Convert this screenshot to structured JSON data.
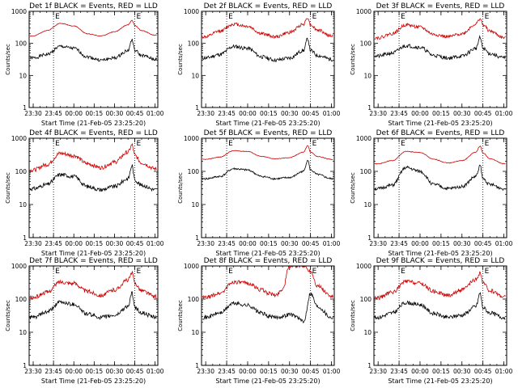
{
  "figure": {
    "background": "#ffffff",
    "colors": {
      "events": "#000000",
      "lld": "#cc0000",
      "axes": "#000000"
    }
  },
  "chart_data": [
    {
      "type": "line",
      "title": "Det 1f BLACK = Events, RED = LLD",
      "xlabel": "Start Time (21-Feb-05 23:25:20)",
      "ylabel": "Counts/sec",
      "x_ticks": [
        "23:30",
        "23:45",
        "00:00",
        "00:15",
        "00:30",
        "00:45",
        "01:00"
      ],
      "y_ticks": [
        "1",
        "10",
        "100",
        "1000"
      ],
      "y_scale": "log",
      "ylim": [
        1,
        1000
      ],
      "time_span": "23:27 to 01:02",
      "markers": [
        {
          "t": "23:45",
          "label": "E"
        },
        {
          "t": "00:45",
          "label": "E"
        }
      ],
      "series": [
        {
          "name": "BLACK = Events",
          "color": "#000000",
          "t": [
            "23:30",
            "23:40",
            "23:50",
            "00:00",
            "00:10",
            "00:20",
            "00:30",
            "00:40",
            "00:43",
            "00:45",
            "00:50",
            "01:00"
          ],
          "values": [
            35,
            45,
            80,
            70,
            38,
            30,
            35,
            60,
            130,
            60,
            42,
            32
          ],
          "noise": 0.05
        },
        {
          "name": "RED = LLD",
          "color": "#cc0000",
          "t": [
            "23:30",
            "23:40",
            "23:50",
            "00:00",
            "00:10",
            "00:20",
            "00:30",
            "00:40",
            "00:43",
            "00:45",
            "00:50",
            "01:00"
          ],
          "values": [
            170,
            250,
            420,
            350,
            200,
            170,
            230,
            380,
            520,
            360,
            250,
            180
          ],
          "noise": 0.01
        }
      ]
    },
    {
      "type": "line",
      "title": "Det 2f BLACK = Events, RED = LLD",
      "xlabel": "Start Time (21-Feb-05 23:25:20)",
      "ylabel": "Counts/sec",
      "x_ticks": [
        "23:30",
        "23:45",
        "00:00",
        "00:15",
        "00:30",
        "00:45",
        "01:00"
      ],
      "y_ticks": [
        "1",
        "10",
        "100",
        "1000"
      ],
      "y_scale": "log",
      "ylim": [
        1,
        1000
      ],
      "time_span": "23:27 to 01:02",
      "markers": [
        {
          "t": "23:45",
          "label": "E"
        },
        {
          "t": "00:45",
          "label": "E"
        }
      ],
      "series": [
        {
          "name": "BLACK = Events",
          "color": "#000000",
          "t": [
            "23:30",
            "23:40",
            "23:50",
            "00:00",
            "00:10",
            "00:20",
            "00:30",
            "00:40",
            "00:43",
            "00:45",
            "00:50",
            "01:00"
          ],
          "values": [
            35,
            45,
            80,
            70,
            38,
            30,
            35,
            60,
            140,
            60,
            42,
            32
          ],
          "noise": 0.06
        },
        {
          "name": "RED = LLD",
          "color": "#cc0000",
          "t": [
            "23:30",
            "23:40",
            "23:50",
            "00:00",
            "00:10",
            "00:20",
            "00:30",
            "00:40",
            "00:43",
            "00:45",
            "00:50",
            "01:00"
          ],
          "values": [
            160,
            240,
            400,
            340,
            200,
            160,
            220,
            400,
            650,
            380,
            260,
            170
          ],
          "noise": 0.05
        }
      ]
    },
    {
      "type": "line",
      "title": "Det 3f BLACK = Events, RED = LLD",
      "xlabel": "Start Time (21-Feb-05 23:25:20)",
      "ylabel": "Counts/sec",
      "x_ticks": [
        "23:30",
        "23:45",
        "00:00",
        "00:15",
        "00:30",
        "00:45",
        "01:00"
      ],
      "y_ticks": [
        "1",
        "10",
        "100",
        "1000"
      ],
      "y_scale": "log",
      "ylim": [
        1,
        1000
      ],
      "time_span": "23:27 to 01:02",
      "markers": [
        {
          "t": "23:45",
          "label": "E"
        },
        {
          "t": "00:45",
          "label": "E"
        }
      ],
      "series": [
        {
          "name": "BLACK = Events",
          "color": "#000000",
          "t": [
            "23:30",
            "23:40",
            "23:50",
            "00:00",
            "00:10",
            "00:20",
            "00:30",
            "00:40",
            "00:43",
            "00:45",
            "00:50",
            "01:00"
          ],
          "values": [
            40,
            50,
            85,
            75,
            42,
            35,
            40,
            70,
            150,
            70,
            48,
            35
          ],
          "noise": 0.06
        },
        {
          "name": "RED = LLD",
          "color": "#cc0000",
          "t": [
            "23:30",
            "23:40",
            "23:50",
            "00:00",
            "00:10",
            "00:20",
            "00:30",
            "00:40",
            "00:43",
            "00:45",
            "00:50",
            "01:00"
          ],
          "values": [
            150,
            200,
            380,
            320,
            190,
            160,
            200,
            400,
            600,
            380,
            240,
            150
          ],
          "noise": 0.05
        }
      ]
    },
    {
      "type": "line",
      "title": "Det 4f BLACK = Events, RED = LLD",
      "xlabel": "Start Time (21-Feb-05 23:25:20)",
      "ylabel": "Counts/sec",
      "x_ticks": [
        "23:30",
        "23:45",
        "00:00",
        "00:15",
        "00:30",
        "00:45",
        "01:00"
      ],
      "y_ticks": [
        "1",
        "10",
        "100",
        "1000"
      ],
      "y_scale": "log",
      "ylim": [
        1,
        1000
      ],
      "time_span": "23:27 to 01:02",
      "markers": [
        {
          "t": "23:45",
          "label": "E"
        },
        {
          "t": "00:45",
          "label": "E"
        }
      ],
      "series": [
        {
          "name": "BLACK = Events",
          "color": "#000000",
          "t": [
            "23:30",
            "23:40",
            "23:50",
            "00:00",
            "00:10",
            "00:20",
            "00:30",
            "00:40",
            "00:43",
            "00:45",
            "00:50",
            "01:00"
          ],
          "values": [
            30,
            40,
            80,
            70,
            35,
            28,
            35,
            60,
            150,
            55,
            38,
            28
          ],
          "noise": 0.06
        },
        {
          "name": "RED = LLD",
          "color": "#cc0000",
          "t": [
            "23:30",
            "23:40",
            "23:50",
            "00:00",
            "00:10",
            "00:20",
            "00:30",
            "00:40",
            "00:43",
            "00:45",
            "00:50",
            "01:00"
          ],
          "values": [
            110,
            160,
            350,
            300,
            170,
            130,
            190,
            380,
            620,
            300,
            180,
            120
          ],
          "noise": 0.06
        }
      ]
    },
    {
      "type": "line",
      "title": "Det 5f BLACK = Events, RED = LLD",
      "xlabel": "Start Time (21-Feb-05 23:25:20)",
      "ylabel": "Counts/sec",
      "x_ticks": [
        "23:30",
        "23:45",
        "00:00",
        "00:15",
        "00:30",
        "00:45",
        "01:00"
      ],
      "y_ticks": [
        "1",
        "10",
        "100",
        "1000"
      ],
      "y_scale": "log",
      "ylim": [
        1,
        1000
      ],
      "time_span": "23:27 to 01:02",
      "markers": [
        {
          "t": "23:45",
          "label": "E"
        },
        {
          "t": "00:45",
          "label": "E"
        }
      ],
      "series": [
        {
          "name": "BLACK = Events",
          "color": "#000000",
          "t": [
            "23:30",
            "23:40",
            "23:50",
            "00:00",
            "00:10",
            "00:20",
            "00:30",
            "00:40",
            "00:43",
            "00:45",
            "00:50",
            "01:00"
          ],
          "values": [
            60,
            70,
            120,
            110,
            70,
            60,
            65,
            100,
            220,
            110,
            80,
            60
          ],
          "noise": 0.03
        },
        {
          "name": "RED = LLD",
          "color": "#cc0000",
          "t": [
            "23:30",
            "23:40",
            "23:50",
            "00:00",
            "00:10",
            "00:20",
            "00:30",
            "00:40",
            "00:43",
            "00:45",
            "00:50",
            "01:00"
          ],
          "values": [
            230,
            270,
            420,
            400,
            280,
            240,
            260,
            380,
            600,
            380,
            280,
            230
          ],
          "noise": 0.01
        }
      ]
    },
    {
      "type": "line",
      "title": "Det 6f BLACK = Events, RED = LLD",
      "xlabel": "Start Time (21-Feb-05 23:25:20)",
      "ylabel": "Counts/sec",
      "x_ticks": [
        "23:30",
        "23:45",
        "00:00",
        "00:15",
        "00:30",
        "00:45",
        "01:00"
      ],
      "y_ticks": [
        "1",
        "10",
        "100",
        "1000"
      ],
      "y_scale": "log",
      "ylim": [
        1,
        1000
      ],
      "time_span": "23:27 to 01:02",
      "markers": [
        {
          "t": "23:45",
          "label": "E"
        },
        {
          "t": "00:45",
          "label": "E"
        }
      ],
      "series": [
        {
          "name": "BLACK = Events",
          "color": "#000000",
          "t": [
            "23:30",
            "23:40",
            "23:50",
            "00:00",
            "00:10",
            "00:20",
            "00:30",
            "00:40",
            "00:43",
            "00:45",
            "00:50",
            "01:00"
          ],
          "values": [
            30,
            38,
            130,
            100,
            40,
            30,
            35,
            70,
            150,
            60,
            40,
            30
          ],
          "noise": 0.05
        },
        {
          "name": "RED = LLD",
          "color": "#cc0000",
          "t": [
            "23:30",
            "23:40",
            "23:50",
            "00:00",
            "00:10",
            "00:20",
            "00:30",
            "00:40",
            "00:43",
            "00:45",
            "00:50",
            "01:00"
          ],
          "values": [
            170,
            210,
            400,
            370,
            230,
            180,
            210,
            380,
            580,
            360,
            240,
            170
          ],
          "noise": 0.01
        }
      ]
    },
    {
      "type": "line",
      "title": "Det 7f BLACK = Events, RED = LLD",
      "xlabel": "Start Time (21-Feb-05 23:25:20)",
      "ylabel": "Counts/sec",
      "x_ticks": [
        "23:30",
        "23:45",
        "00:00",
        "00:15",
        "00:30",
        "00:45",
        "01:00"
      ],
      "y_ticks": [
        "1",
        "10",
        "100",
        "1000"
      ],
      "y_scale": "log",
      "ylim": [
        1,
        1000
      ],
      "time_span": "23:27 to 01:02",
      "markers": [
        {
          "t": "23:45",
          "label": "E"
        },
        {
          "t": "00:45",
          "label": "E"
        }
      ],
      "series": [
        {
          "name": "BLACK = Events",
          "color": "#000000",
          "t": [
            "23:30",
            "23:40",
            "23:50",
            "00:00",
            "00:10",
            "00:20",
            "00:30",
            "00:40",
            "00:43",
            "00:45",
            "00:50",
            "01:00"
          ],
          "values": [
            28,
            40,
            80,
            70,
            35,
            28,
            32,
            60,
            150,
            55,
            38,
            28
          ],
          "noise": 0.06
        },
        {
          "name": "RED = LLD",
          "color": "#cc0000",
          "t": [
            "23:30",
            "23:40",
            "23:50",
            "00:00",
            "00:10",
            "00:20",
            "00:30",
            "00:40",
            "00:43",
            "00:45",
            "00:50",
            "01:00"
          ],
          "values": [
            110,
            160,
            330,
            300,
            170,
            130,
            190,
            380,
            600,
            300,
            180,
            120
          ],
          "noise": 0.06
        }
      ]
    },
    {
      "type": "line",
      "title": "Det 8f BLACK = Events, RED = LLD",
      "xlabel": "Start Time (21-Feb-05 23:25:20)",
      "ylabel": "Counts/sec",
      "x_ticks": [
        "23:30",
        "23:45",
        "00:00",
        "00:15",
        "00:30",
        "00:45",
        "01:00"
      ],
      "y_ticks": [
        "1",
        "10",
        "100",
        "1000"
      ],
      "y_scale": "log",
      "ylim": [
        1,
        1000
      ],
      "time_span": "23:27 to 01:02",
      "markers": [
        {
          "t": "23:45",
          "label": "E"
        },
        {
          "t": "00:45",
          "label": "E"
        }
      ],
      "series": [
        {
          "name": "BLACK = Events",
          "color": "#000000",
          "t": [
            "23:30",
            "23:40",
            "23:50",
            "00:00",
            "00:10",
            "00:15",
            "00:20",
            "00:25",
            "00:30",
            "00:35",
            "00:40",
            "00:45",
            "00:50",
            "01:00"
          ],
          "values": [
            28,
            38,
            75,
            65,
            38,
            30,
            28,
            30,
            35,
            30,
            20,
            150,
            60,
            28
          ],
          "noise": 0.06
        },
        {
          "name": "RED = LLD",
          "color": "#cc0000",
          "t": [
            "23:30",
            "23:40",
            "23:50",
            "00:00",
            "00:10",
            "00:15",
            "00:20",
            "00:25",
            "00:30",
            "00:35",
            "00:40",
            "00:45",
            "00:50",
            "01:00"
          ],
          "values": [
            110,
            150,
            330,
            300,
            190,
            150,
            130,
            200,
            1000,
            1000,
            1000,
            700,
            250,
            120
          ],
          "noise": 0.06
        }
      ]
    },
    {
      "type": "line",
      "title": "Det 9f BLACK = Events, RED = LLD",
      "xlabel": "Start Time (21-Feb-05 23:25:20)",
      "ylabel": "Counts/sec",
      "x_ticks": [
        "23:30",
        "23:45",
        "00:00",
        "00:15",
        "00:30",
        "00:45",
        "01:00"
      ],
      "y_ticks": [
        "1",
        "10",
        "100",
        "1000"
      ],
      "y_scale": "log",
      "ylim": [
        1,
        1000
      ],
      "time_span": "23:27 to 01:02",
      "markers": [
        {
          "t": "23:45",
          "label": "E"
        },
        {
          "t": "00:45",
          "label": "E"
        }
      ],
      "series": [
        {
          "name": "BLACK = Events",
          "color": "#000000",
          "t": [
            "23:30",
            "23:40",
            "23:50",
            "00:00",
            "00:10",
            "00:20",
            "00:30",
            "00:40",
            "00:43",
            "00:45",
            "00:50",
            "01:00"
          ],
          "values": [
            28,
            38,
            78,
            68,
            36,
            28,
            33,
            60,
            150,
            55,
            38,
            28
          ],
          "noise": 0.06
        },
        {
          "name": "RED = LLD",
          "color": "#cc0000",
          "t": [
            "23:30",
            "23:40",
            "23:50",
            "00:00",
            "00:10",
            "00:20",
            "00:30",
            "00:40",
            "00:43",
            "00:45",
            "00:50",
            "01:00"
          ],
          "values": [
            110,
            160,
            340,
            300,
            170,
            130,
            190,
            380,
            620,
            300,
            180,
            120
          ],
          "noise": 0.06
        }
      ]
    }
  ]
}
